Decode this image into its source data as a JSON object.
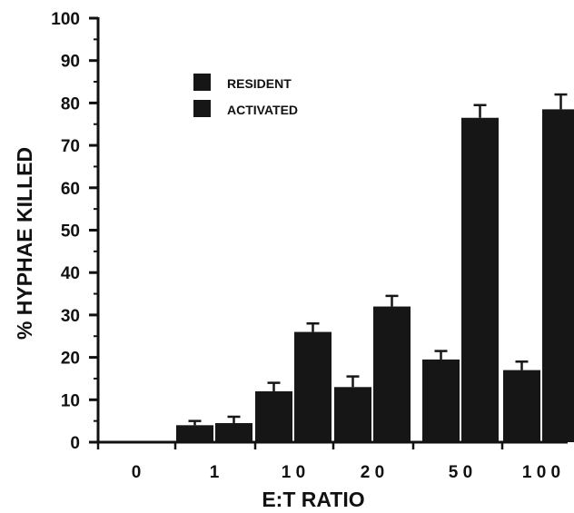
{
  "chart_data": {
    "type": "bar",
    "title": "",
    "xlabel": "E:T RATIO",
    "ylabel": "% HYPHAE KILLED",
    "categories": [
      "0",
      "1",
      "1 0",
      "2 0",
      "5 0",
      "1 0 0"
    ],
    "ylim": [
      0,
      100
    ],
    "yticks": [
      0,
      10,
      20,
      30,
      40,
      50,
      60,
      70,
      80,
      90,
      100
    ],
    "grid": false,
    "legend_position": "upper-left",
    "series": [
      {
        "name": "RESIDENT",
        "values": [
          0,
          4,
          12,
          13,
          19.5,
          17
        ],
        "errors": [
          0,
          1,
          2,
          2.5,
          2,
          2
        ]
      },
      {
        "name": "ACTIVATED",
        "values": [
          0,
          4.5,
          26,
          32,
          76.5,
          78.5
        ],
        "errors": [
          0,
          1.5,
          2,
          2.5,
          3,
          3.5
        ]
      }
    ],
    "colors": {
      "bars": "#161616",
      "axis": "#111111"
    }
  }
}
